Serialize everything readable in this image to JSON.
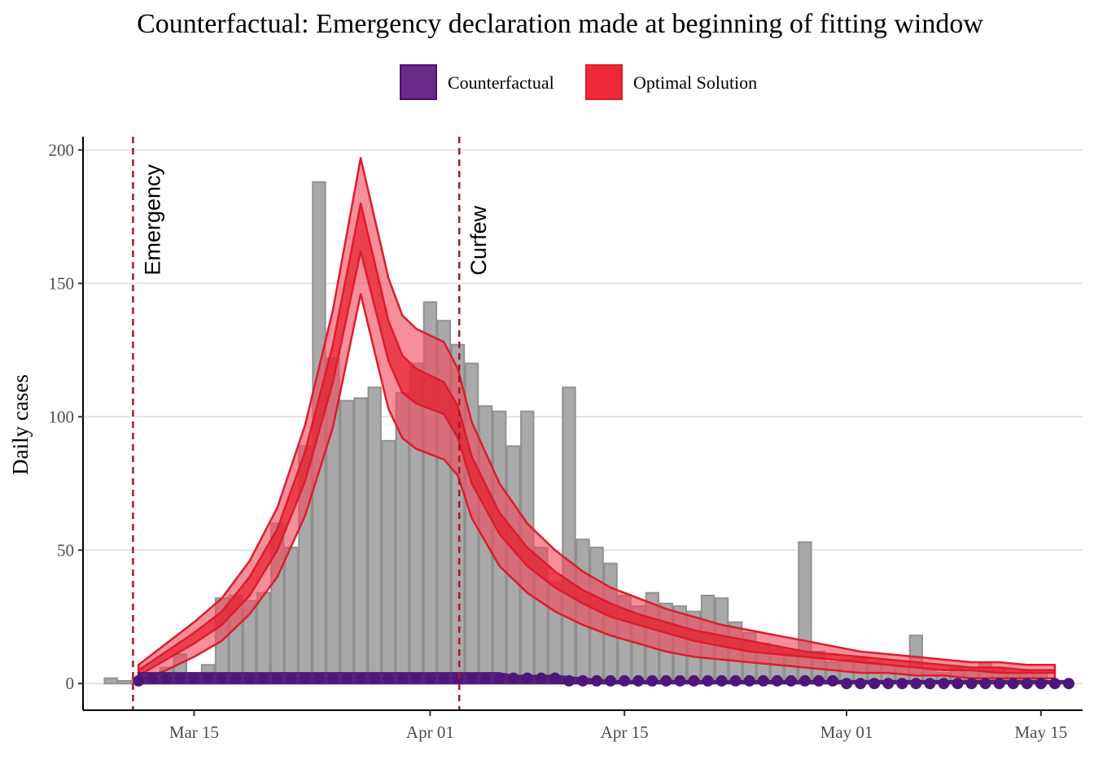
{
  "chart_data": {
    "type": "bar",
    "title": "Counterfactual: Emergency declaration made at beginning of fitting window",
    "xlabel": "",
    "ylabel": "Daily cases",
    "ylim": [
      -10,
      205
    ],
    "xlim_days": [
      0,
      72
    ],
    "x_ticks": [
      {
        "label": "Mar 15",
        "day": 8
      },
      {
        "label": "Apr 01",
        "day": 25
      },
      {
        "label": "Apr 15",
        "day": 39
      },
      {
        "label": "May 01",
        "day": 55
      },
      {
        "label": "May 15",
        "day": 69
      }
    ],
    "y_ticks": [
      0,
      50,
      100,
      150,
      200
    ],
    "grid": true,
    "legend": {
      "position": "top",
      "entries": [
        {
          "label": "Counterfactual",
          "color": "#6a2a8a",
          "border": "#4a1370"
        },
        {
          "label": "Optimal Solution",
          "color": "#ee2a3a",
          "border": "#dd1c2c"
        }
      ]
    },
    "annotations": [
      {
        "label": "Emergency",
        "day": 3.6
      },
      {
        "label": "Curfew",
        "day": 27.1
      }
    ],
    "colors": {
      "bars": "#a9a9a9",
      "bar_border": "#909090",
      "band_outer": "#f04b5a",
      "band_inner": "#e8202f",
      "band_line": "#dc1c2e",
      "counterfactual": "#4f167a",
      "vline": "#a51a24",
      "grid": "#e3e3e3"
    },
    "bars": {
      "start_day": 2,
      "values": [
        2,
        1,
        2,
        4,
        6,
        11,
        4,
        7,
        32,
        33,
        31,
        34,
        60,
        51,
        89,
        188,
        122,
        106,
        107,
        111,
        91,
        109,
        120,
        143,
        136,
        127,
        120,
        104,
        102,
        89,
        102,
        51,
        38,
        111,
        54,
        51,
        45,
        33,
        29,
        34,
        30,
        29,
        27,
        33,
        32,
        23,
        19,
        15,
        13,
        12,
        53,
        12,
        8,
        9,
        10,
        8,
        7,
        6,
        18,
        5,
        4,
        6,
        5,
        8,
        6,
        4,
        5,
        4
      ]
    },
    "optimal_solution": {
      "days": [
        4,
        6,
        8,
        10,
        12,
        14,
        16,
        18,
        20,
        22,
        23,
        24,
        26,
        27,
        28,
        30,
        32,
        34,
        36,
        38,
        40,
        42,
        44,
        46,
        48,
        50,
        52,
        54,
        56,
        58,
        60,
        62,
        64,
        66,
        68,
        70
      ],
      "outer_upper": [
        7,
        15,
        23,
        32,
        46,
        66,
        97,
        140,
        197,
        152,
        138,
        133,
        128,
        118,
        98,
        75,
        60,
        50,
        42,
        36,
        32,
        28,
        25,
        22,
        20,
        18,
        16,
        14,
        12,
        11,
        10,
        9,
        8,
        8,
        7,
        7
      ],
      "inner_upper": [
        5,
        12,
        19,
        27,
        40,
        58,
        87,
        127,
        180,
        136,
        123,
        118,
        113,
        104,
        85,
        64,
        51,
        42,
        35,
        30,
        26,
        23,
        20,
        18,
        16,
        14,
        12,
        11,
        10,
        9,
        8,
        7,
        6,
        6,
        5,
        5
      ],
      "inner_lower": [
        3,
        9,
        15,
        22,
        33,
        50,
        76,
        113,
        162,
        121,
        109,
        105,
        101,
        92,
        75,
        56,
        44,
        36,
        30,
        25,
        22,
        19,
        16,
        14,
        12,
        11,
        10,
        9,
        8,
        7,
        6,
        5,
        5,
        4,
        4,
        4
      ],
      "outer_lower": [
        1,
        5,
        10,
        16,
        26,
        40,
        63,
        96,
        146,
        103,
        92,
        88,
        84,
        78,
        62,
        44,
        34,
        27,
        22,
        18,
        15,
        12,
        10,
        9,
        8,
        7,
        6,
        5,
        4,
        4,
        3,
        3,
        2,
        2,
        2,
        2
      ]
    },
    "counterfactual": {
      "days": [
        4,
        28,
        30,
        31,
        34,
        36,
        38,
        71
      ],
      "upper": [
        4,
        4,
        4,
        3,
        3,
        2,
        1,
        1
      ],
      "lower": [
        0,
        0,
        0,
        0,
        0,
        0,
        0,
        0
      ],
      "points_start_day": 4,
      "points": [
        1,
        2,
        2,
        2,
        2,
        2,
        2,
        2,
        2,
        2,
        2,
        2,
        2,
        2,
        2,
        2,
        2,
        2,
        2,
        2,
        2,
        2,
        2,
        2,
        2,
        2,
        2,
        2,
        2,
        2,
        2,
        1,
        1,
        1,
        1,
        1,
        1,
        1,
        1,
        1,
        1,
        1,
        1,
        1,
        1,
        1,
        1,
        1,
        1,
        1,
        1,
        0,
        0,
        0,
        0,
        0,
        0,
        0,
        0,
        0,
        0,
        0,
        0,
        0,
        0,
        0,
        0,
        0
      ]
    }
  }
}
